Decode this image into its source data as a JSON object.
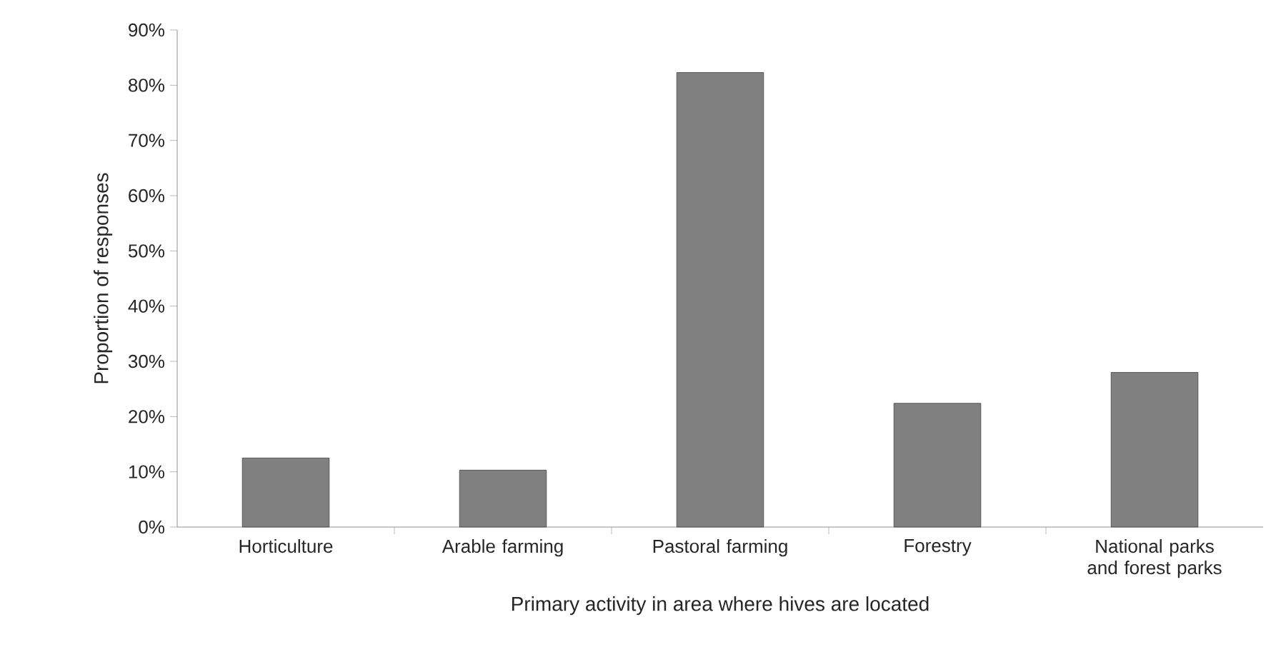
{
  "chart_data": {
    "type": "bar",
    "xlabel": "Primary activity in area where hives are located",
    "ylabel": "Proportion of responses",
    "categories": [
      "Horticulture",
      "Arable farming",
      "Pastoral farming",
      "Forestry",
      "National parks and forest parks"
    ],
    "values": [
      12.5,
      10.3,
      82.3,
      22.4,
      28.0
    ],
    "color": "#808080",
    "ylim": [
      0,
      90
    ],
    "yticks": [
      {
        "value": 0,
        "label": "0%"
      },
      {
        "value": 10,
        "label": "10%"
      },
      {
        "value": 20,
        "label": "20%"
      },
      {
        "value": 30,
        "label": "30%"
      },
      {
        "value": 40,
        "label": "40%"
      },
      {
        "value": 50,
        "label": "50%"
      },
      {
        "value": 60,
        "label": "60%"
      },
      {
        "value": 70,
        "label": "70%"
      },
      {
        "value": 80,
        "label": "80%"
      },
      {
        "value": 90,
        "label": "90%"
      }
    ]
  }
}
